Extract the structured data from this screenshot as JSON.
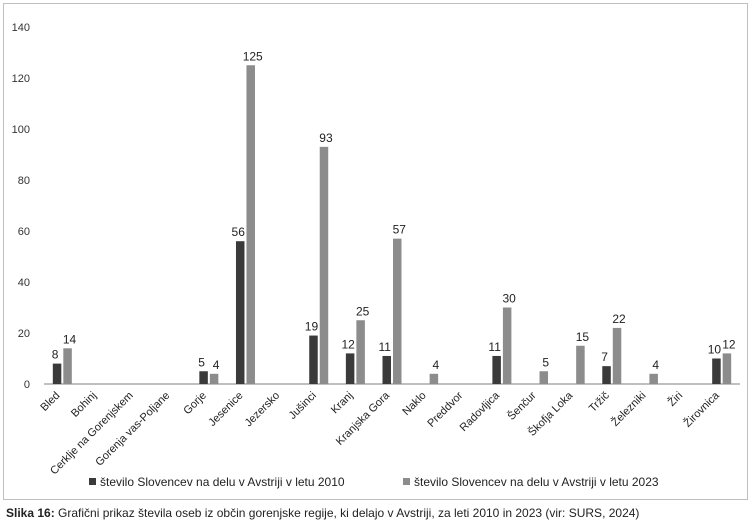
{
  "chart_data": {
    "type": "bar",
    "title": "",
    "xlabel": "",
    "ylabel": "",
    "ylim": [
      0,
      140
    ],
    "yticks": [
      0,
      20,
      40,
      60,
      80,
      100,
      120,
      140
    ],
    "grid": false,
    "legend_position": "bottom",
    "categories": [
      "Bled",
      "Bohinj",
      "Cerklje na Gorenjskem",
      "Gorenja vas-Poljane",
      "Gorje",
      "Jesenice",
      "Jezersko",
      "Jušinci",
      "Kranj",
      "Kranjska Gora",
      "Naklo",
      "Preddvor",
      "Radovljica",
      "Šenčur",
      "Škofja Loka",
      "Tržič",
      "Železniki",
      "Žiri",
      "Žirovnica"
    ],
    "series": [
      {
        "name": "število Slovencev na delu v Avstriji v letu 2010",
        "color": "#3a3a3a",
        "values": [
          8,
          null,
          null,
          null,
          5,
          56,
          null,
          19,
          12,
          11,
          null,
          null,
          11,
          null,
          null,
          7,
          null,
          null,
          10
        ]
      },
      {
        "name": "število Slovencev na delu v Avstriji v letu 2023",
        "color": "#8c8c8c",
        "values": [
          14,
          null,
          null,
          null,
          4,
          125,
          null,
          93,
          25,
          57,
          4,
          null,
          30,
          5,
          15,
          22,
          4,
          null,
          12
        ]
      }
    ]
  },
  "caption": {
    "label": "Slika 16:",
    "text": " Grafični prikaz števila oseb iz občin gorenjske regije, ki delajo v Avstriji, za leti 2010 in 2023 (vir: SURS, 2024)"
  }
}
